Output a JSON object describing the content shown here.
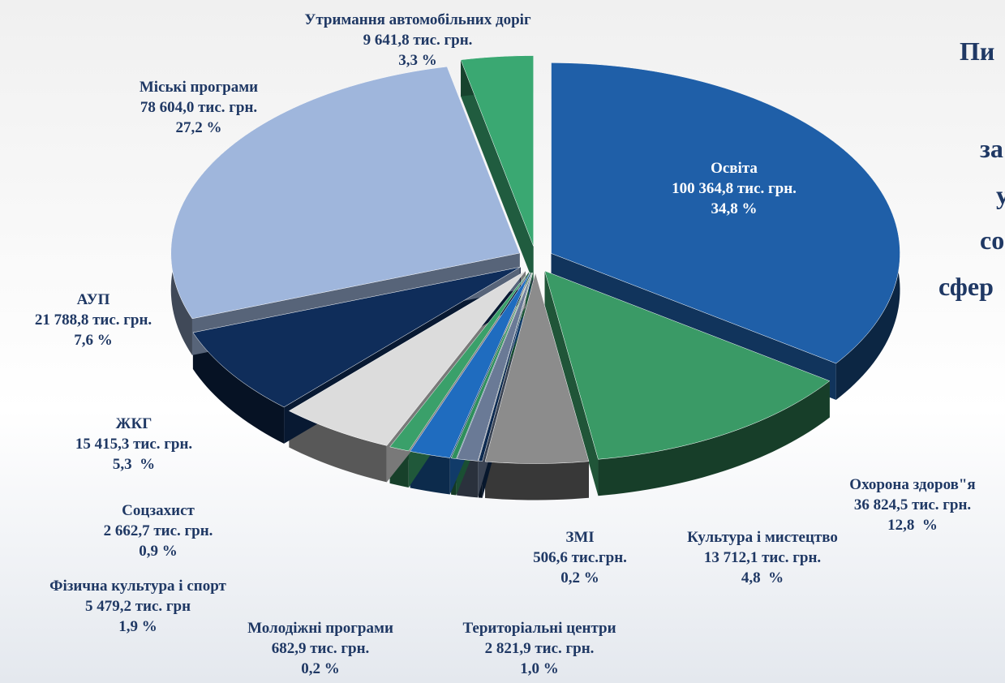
{
  "chart_data": {
    "type": "pie",
    "title_lines": [
      "Пи",
      "за",
      "у",
      "со",
      "сфер"
    ],
    "categories": [
      "Освіта",
      "Охорона здоров\"я",
      "Культура і мистецтво",
      "ЗМІ",
      "Територіальні центри",
      "Молодіжні програми",
      "Фізична культура і спорт",
      "Соцзахист",
      "ЖКГ",
      "АУП",
      "Міські програми",
      "Утримання автомобільних доріг"
    ],
    "values": [
      100364.8,
      36824.5,
      13712.1,
      506.6,
      2821.9,
      682.9,
      5479.2,
      2662.7,
      15415.3,
      21788.8,
      78604.0,
      9641.8
    ],
    "value_labels": [
      "100 364,8 тис. грн.",
      "36 824,5 тис. грн.",
      "13 712,1 тис. грн.",
      "506,6 тис.грн.",
      "2 821,9 тис. грн.",
      "682,9 тис. грн.",
      "5 479,2 тис. грн",
      "2 662,7 тис. грн.",
      "15 415,3 тис. грн.",
      "21 788,8 тис. грн.",
      "78 604,0 тис. грн.",
      "9 641,8 тис. грн."
    ],
    "percents": [
      34.8,
      12.8,
      4.8,
      0.2,
      1.0,
      0.2,
      1.9,
      0.9,
      5.3,
      7.6,
      27.2,
      3.3
    ],
    "percent_labels": [
      "34,8 %",
      "12,8  %",
      "4,8  %",
      "0,2 %",
      "1,0 %",
      "0,2 %",
      "1,9 %",
      "0,9 %",
      "5,3  %",
      "7,6 %",
      "27,2 %",
      "3,3 %"
    ],
    "colors": [
      "#1f5fa8",
      "#3a9a66",
      "#8c8c8c",
      "#0d2a50",
      "#6a7a96",
      "#2f8f5c",
      "#1f6cbf",
      "#3aa06a",
      "#dcdcdc",
      "#0f2d5a",
      "#9fb6dc",
      "#3aa872"
    ]
  }
}
